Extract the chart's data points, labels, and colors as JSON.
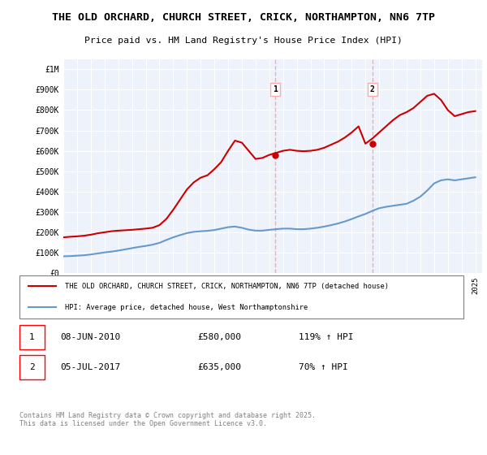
{
  "title1": "THE OLD ORCHARD, CHURCH STREET, CRICK, NORTHAMPTON, NN6 7TP",
  "title2": "Price paid vs. HM Land Registry's House Price Index (HPI)",
  "yticks": [
    0,
    100000,
    200000,
    300000,
    400000,
    500000,
    600000,
    700000,
    800000,
    900000,
    1000000
  ],
  "ytick_labels": [
    "£0",
    "£100K",
    "£200K",
    "£300K",
    "£400K",
    "£500K",
    "£600K",
    "£700K",
    "£800K",
    "£900K",
    "£1M"
  ],
  "xlim_start": 1995.0,
  "xlim_end": 2025.5,
  "ylim_min": 0,
  "ylim_max": 1050000,
  "legend_line1": "THE OLD ORCHARD, CHURCH STREET, CRICK, NORTHAMPTON, NN6 7TP (detached house)",
  "legend_line2": "HPI: Average price, detached house, West Northamptonshire",
  "sale1_date": "08-JUN-2010",
  "sale1_price": "£580,000",
  "sale1_hpi": "119% ↑ HPI",
  "sale2_date": "05-JUL-2017",
  "sale2_price": "£635,000",
  "sale2_hpi": "70% ↑ HPI",
  "footer": "Contains HM Land Registry data © Crown copyright and database right 2025.\nThis data is licensed under the Open Government Licence v3.0.",
  "sale1_x": 2010.44,
  "sale1_y": 580000,
  "sale2_x": 2017.51,
  "sale2_y": 635000,
  "line_color_red": "#cc0000",
  "line_color_blue": "#6699cc",
  "vline_color": "#ffaaaa",
  "background_color": "#eef2fb",
  "hpi_years": [
    1995,
    1995.5,
    1996,
    1996.5,
    1997,
    1997.5,
    1998,
    1998.5,
    1999,
    1999.5,
    2000,
    2000.5,
    2001,
    2001.5,
    2002,
    2002.5,
    2003,
    2003.5,
    2004,
    2004.5,
    2005,
    2005.5,
    2006,
    2006.5,
    2007,
    2007.5,
    2008,
    2008.5,
    2009,
    2009.5,
    2010,
    2010.5,
    2011,
    2011.5,
    2012,
    2012.5,
    2013,
    2013.5,
    2014,
    2014.5,
    2015,
    2015.5,
    2016,
    2016.5,
    2017,
    2017.5,
    2018,
    2018.5,
    2019,
    2019.5,
    2020,
    2020.5,
    2021,
    2021.5,
    2022,
    2022.5,
    2023,
    2023.5,
    2024,
    2024.5,
    2025
  ],
  "hpi_values": [
    82000,
    83000,
    85000,
    87000,
    91000,
    96000,
    101000,
    105000,
    110000,
    116000,
    122000,
    128000,
    133000,
    139000,
    148000,
    162000,
    175000,
    186000,
    196000,
    202000,
    205000,
    207000,
    211000,
    218000,
    225000,
    228000,
    222000,
    213000,
    208000,
    208000,
    212000,
    215000,
    218000,
    218000,
    215000,
    215000,
    218000,
    222000,
    228000,
    235000,
    243000,
    253000,
    265000,
    278000,
    290000,
    305000,
    318000,
    325000,
    330000,
    335000,
    340000,
    355000,
    375000,
    405000,
    440000,
    455000,
    460000,
    455000,
    460000,
    465000,
    470000
  ],
  "price_years": [
    1995,
    1995.5,
    1996,
    1996.5,
    1997,
    1997.5,
    1998,
    1998.5,
    1999,
    1999.5,
    2000,
    2000.5,
    2001,
    2001.5,
    2002,
    2002.5,
    2003,
    2003.5,
    2004,
    2004.5,
    2005,
    2005.5,
    2006,
    2006.5,
    2007,
    2007.5,
    2008,
    2008.5,
    2009,
    2009.5,
    2010,
    2010.5,
    2011,
    2011.5,
    2012,
    2012.5,
    2013,
    2013.5,
    2014,
    2014.5,
    2015,
    2015.5,
    2016,
    2016.5,
    2017,
    2017.5,
    2018,
    2018.5,
    2019,
    2019.5,
    2020,
    2020.5,
    2021,
    2021.5,
    2022,
    2022.5,
    2023,
    2023.5,
    2024,
    2024.5,
    2025
  ],
  "price_values": [
    175000,
    178000,
    180000,
    183000,
    188000,
    195000,
    200000,
    205000,
    208000,
    210000,
    212000,
    215000,
    218000,
    222000,
    235000,
    265000,
    310000,
    360000,
    410000,
    445000,
    468000,
    480000,
    510000,
    545000,
    600000,
    650000,
    640000,
    600000,
    560000,
    565000,
    580000,
    590000,
    600000,
    605000,
    600000,
    598000,
    600000,
    605000,
    615000,
    630000,
    645000,
    665000,
    690000,
    720000,
    635000,
    660000,
    690000,
    720000,
    750000,
    775000,
    790000,
    810000,
    840000,
    870000,
    880000,
    850000,
    800000,
    770000,
    780000,
    790000,
    795000
  ]
}
